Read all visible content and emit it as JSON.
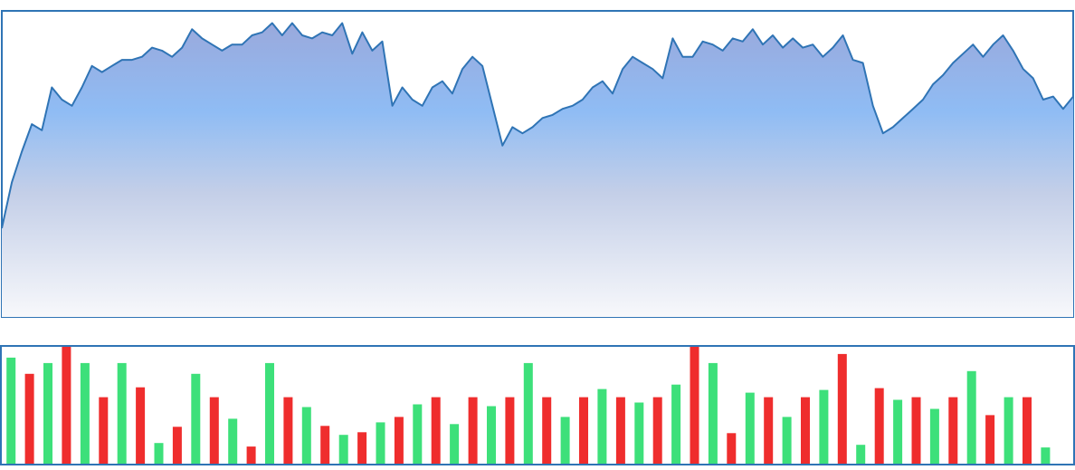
{
  "chart_data": [
    {
      "type": "area",
      "title": "",
      "xlabel": "",
      "ylabel": "",
      "grid": false,
      "legend": "none",
      "ylim": [
        0,
        100
      ],
      "x": [
        0,
        1,
        2,
        3,
        4,
        5,
        6,
        7,
        8,
        9,
        10,
        11,
        12,
        13,
        14,
        15,
        16,
        17,
        18,
        19,
        20,
        21,
        22,
        23,
        24,
        25,
        26,
        27,
        28,
        29,
        30,
        31,
        32,
        33,
        34,
        35,
        36,
        37,
        38,
        39,
        40,
        41,
        42,
        43,
        44,
        45,
        46,
        47,
        48,
        49,
        50,
        51,
        52,
        53,
        54,
        55,
        56,
        57,
        58,
        59,
        60,
        61,
        62,
        63,
        64,
        65,
        66,
        67,
        68,
        69,
        70,
        71,
        72,
        73,
        74,
        75,
        76,
        77,
        78,
        79,
        80,
        81,
        82,
        83,
        84,
        85,
        86,
        87,
        88,
        89,
        90,
        91,
        92,
        93,
        94,
        95,
        96,
        97,
        98,
        99,
        100,
        101,
        102,
        103,
        104,
        105,
        106,
        107
      ],
      "series": [
        {
          "values": [
            29,
            44,
            54,
            63,
            61,
            75,
            71,
            69,
            75,
            82,
            80,
            82,
            84,
            84,
            85,
            88,
            87,
            85,
            88,
            94,
            91,
            89,
            87,
            89,
            89,
            92,
            93,
            96,
            92,
            96,
            92,
            91,
            93,
            92,
            96,
            86,
            93,
            87,
            90,
            69,
            75,
            71,
            69,
            75,
            77,
            73,
            81,
            85,
            82,
            69,
            56,
            62,
            60,
            62,
            65,
            66,
            68,
            69,
            71,
            75,
            77,
            73,
            81,
            85,
            83,
            81,
            78,
            91,
            85,
            85,
            90,
            89,
            87,
            91,
            90,
            94,
            89,
            92,
            88,
            91,
            88,
            89,
            85,
            88,
            92,
            84,
            83,
            69,
            60,
            62,
            65,
            68,
            71,
            76,
            79,
            83,
            86,
            89,
            85,
            89,
            92,
            87,
            81,
            78,
            71,
            72,
            68,
            72
          ]
        }
      ]
    },
    {
      "type": "bar",
      "title": "",
      "xlabel": "",
      "ylabel": "",
      "grid": false,
      "legend": "none",
      "ylim": [
        0,
        130
      ],
      "categories": [
        "1",
        "2",
        "3",
        "4",
        "5",
        "6",
        "7",
        "8",
        "9",
        "10",
        "11",
        "12",
        "13",
        "14",
        "15",
        "16",
        "17",
        "18",
        "19",
        "20",
        "21",
        "22",
        "23",
        "24",
        "25",
        "26",
        "27",
        "28",
        "29",
        "30",
        "31",
        "32",
        "33",
        "34",
        "35",
        "36",
        "37",
        "38",
        "39",
        "40",
        "41",
        "42",
        "43",
        "44",
        "45",
        "46",
        "47",
        "48",
        "49",
        "50",
        "51",
        "52",
        "53",
        "54",
        "55",
        "56",
        "57",
        "58"
      ],
      "series": [
        {
          "values": [
            118,
            100,
            112,
            130,
            112,
            74,
            112,
            85,
            23,
            41,
            100,
            74,
            50,
            19,
            112,
            74,
            63,
            42,
            32,
            35,
            46,
            52,
            66,
            74,
            44,
            74,
            64,
            74,
            112,
            74,
            52,
            74,
            83,
            74,
            68,
            74,
            88,
            130,
            112,
            34,
            79,
            74,
            52,
            74,
            82,
            122,
            21,
            84,
            71,
            74,
            61,
            74,
            103,
            54,
            74,
            74,
            18,
            0
          ]
        }
      ],
      "colors": [
        "green",
        "red",
        "green",
        "red",
        "green",
        "red",
        "green",
        "red",
        "green",
        "red",
        "green",
        "red",
        "green",
        "red",
        "green",
        "red",
        "green",
        "red",
        "green",
        "red",
        "green",
        "red",
        "green",
        "red",
        "green",
        "red",
        "green",
        "red",
        "green",
        "red",
        "green",
        "red",
        "green",
        "red",
        "green",
        "red",
        "green",
        "red",
        "green",
        "red",
        "green",
        "red",
        "green",
        "red",
        "green",
        "red",
        "green",
        "red",
        "green",
        "red",
        "green",
        "red",
        "green",
        "red",
        "green",
        "red",
        "green",
        "red"
      ]
    }
  ],
  "palette": {
    "line": "#2f74b5",
    "frame": "#2f74b5",
    "area_top": "#9aa9dc",
    "area_mid": "#8fbcf4",
    "area_low": "#c4cfe8",
    "area_bottom": "#f7f8fb",
    "bar_green": "#3de07a",
    "bar_red": "#ef2d2d"
  }
}
